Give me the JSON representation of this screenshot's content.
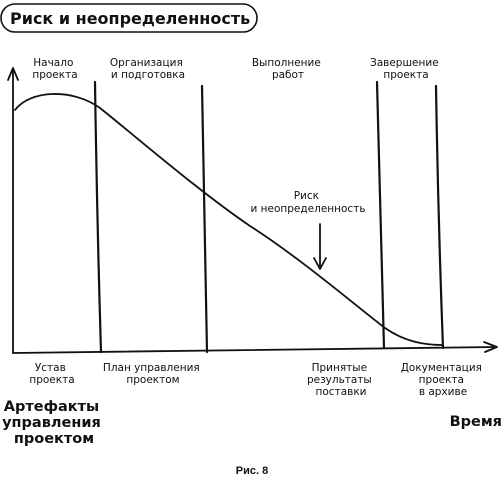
{
  "title": "Риск и неопределенность",
  "phases": [
    {
      "lines": [
        "Начало",
        "проекта"
      ]
    },
    {
      "lines": [
        "Организация",
        "и подготовка"
      ]
    },
    {
      "lines": [
        "Выполнение",
        "работ"
      ]
    },
    {
      "lines": [
        "Завершение",
        "проекта"
      ]
    }
  ],
  "curve_label": [
    "Риск",
    "и неопределенность"
  ],
  "artifacts": [
    {
      "lines": [
        "Устав",
        "проекта"
      ]
    },
    {
      "lines": [
        "План управления",
        "проектом"
      ]
    },
    {
      "lines": [
        "Принятые",
        "результаты",
        "поставки"
      ]
    },
    {
      "lines": [
        "Документация",
        "проекта",
        "в архиве"
      ]
    }
  ],
  "y_axis_label": [
    "Артефакты",
    "управления",
    "проектом"
  ],
  "x_axis_label": "Время",
  "caption": "Рис. 8"
}
